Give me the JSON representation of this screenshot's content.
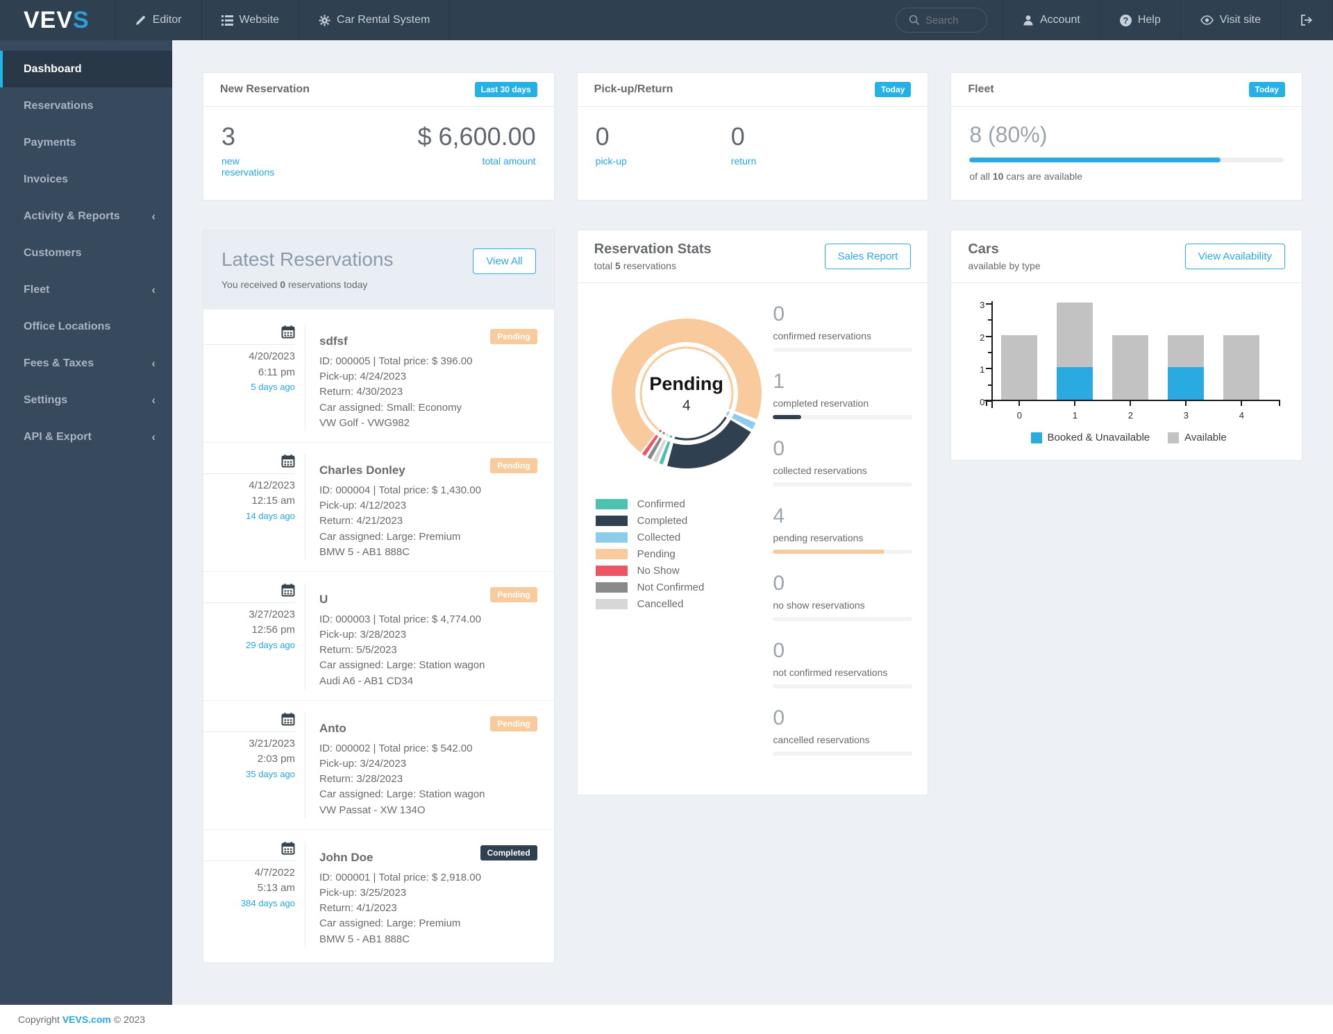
{
  "navbar": {
    "logo_white": "VEV",
    "logo_blue": "S",
    "items": [
      {
        "icon": "pencil-icon",
        "label": "Editor"
      },
      {
        "icon": "list-icon",
        "label": "Website"
      },
      {
        "icon": "gear-icon",
        "label": "Car Rental System"
      }
    ],
    "search_placeholder": "Search",
    "account_label": "Account",
    "help_label": "Help",
    "visit_site_label": "Visit site"
  },
  "sidebar": {
    "items": [
      {
        "label": "Dashboard",
        "active": "true",
        "chevron": ""
      },
      {
        "label": "Reservations",
        "active": "false",
        "chevron": ""
      },
      {
        "label": "Payments",
        "active": "false",
        "chevron": ""
      },
      {
        "label": "Invoices",
        "active": "false",
        "chevron": ""
      },
      {
        "label": "Activity & Reports",
        "active": "false",
        "chevron": "‹"
      },
      {
        "label": "Customers",
        "active": "false",
        "chevron": ""
      },
      {
        "label": "Fleet",
        "active": "false",
        "chevron": "‹"
      },
      {
        "label": "Office Locations",
        "active": "false",
        "chevron": ""
      },
      {
        "label": "Fees & Taxes",
        "active": "false",
        "chevron": "‹"
      },
      {
        "label": "Settings",
        "active": "false",
        "chevron": "‹"
      },
      {
        "label": "API & Export",
        "active": "false",
        "chevron": "‹"
      }
    ]
  },
  "new_reservation": {
    "title": "New Reservation",
    "badge": "Last 30 days",
    "count": "3",
    "count_label": "new reservations",
    "amount": "$ 6,600.00",
    "amount_label": "total amount"
  },
  "pickup_return": {
    "title": "Pick-up/Return",
    "badge": "Today",
    "pickup_count": "0",
    "pickup_label": "pick-up",
    "return_count": "0",
    "return_label": "return"
  },
  "fleet": {
    "title": "Fleet",
    "badge": "Today",
    "value": "8 (80%)",
    "progress_pct": 80,
    "note_prefix": "of all",
    "note_bold": "10",
    "note_suffix": "cars are available"
  },
  "latest_reservations": {
    "title": "Latest Reservations",
    "sub_prefix": "You received",
    "sub_bold": "0",
    "sub_suffix": "reservations today",
    "view_all_label": "View All",
    "items": [
      {
        "date": "4/20/2023",
        "time": "6:11 pm",
        "ago": "5 days ago",
        "name": "sdfsf",
        "status": "Pending",
        "id_line": "ID: 000005 | Total price: $ 396.00",
        "pickup": "Pick-up: 4/24/2023",
        "return": "Return: 4/30/2023",
        "car": "Car assigned: Small: Economy",
        "vehicle": "VW Golf - VWG982"
      },
      {
        "date": "4/12/2023",
        "time": "12:15 am",
        "ago": "14 days ago",
        "name": "Charles Donley",
        "status": "Pending",
        "id_line": "ID: 000004 | Total price: $ 1,430.00",
        "pickup": "Pick-up: 4/12/2023",
        "return": "Return: 4/21/2023",
        "car": "Car assigned: Large: Premium",
        "vehicle": "BMW 5 - AB1 888C"
      },
      {
        "date": "3/27/2023",
        "time": "12:56 pm",
        "ago": "29 days ago",
        "name": "U",
        "status": "Pending",
        "id_line": "ID: 000003 | Total price: $ 4,774.00",
        "pickup": "Pick-up: 3/28/2023",
        "return": "Return: 5/5/2023",
        "car": "Car assigned: Large: Station wagon",
        "vehicle": "Audi A6 - AB1 CD34"
      },
      {
        "date": "3/21/2023",
        "time": "2:03 pm",
        "ago": "35 days ago",
        "name": "Anto",
        "status": "Pending",
        "id_line": "ID: 000002 | Total price: $ 542.00",
        "pickup": "Pick-up: 3/24/2023",
        "return": "Return: 3/28/2023",
        "car": "Car assigned: Large: Station wagon",
        "vehicle": "VW Passat - XW 134O"
      },
      {
        "date": "4/7/2022",
        "time": "5:13 am",
        "ago": "384 days ago",
        "name": "John Doe",
        "status": "Completed",
        "id_line": "ID: 000001 | Total price: $ 2,918.00",
        "pickup": "Pick-up: 3/25/2023",
        "return": "Return: 4/1/2023",
        "car": "Car assigned: Large: Premium",
        "vehicle": "BMW 5 - AB1 888C"
      }
    ]
  },
  "reservation_stats": {
    "title": "Reservation Stats",
    "total_prefix": "total",
    "total_bold": "5",
    "total_suffix": "reservations",
    "sales_report_label": "Sales Report",
    "center_label": "Pending",
    "center_value": "4",
    "legend": [
      {
        "label": "Confirmed",
        "color": "#4ec2b1"
      },
      {
        "label": "Completed",
        "color": "#2f4050"
      },
      {
        "label": "Collected",
        "color": "#8dcdec"
      },
      {
        "label": "Pending",
        "color": "#f8ca9c"
      },
      {
        "label": "No Show",
        "color": "#ed5565"
      },
      {
        "label": "Not Confirmed",
        "color": "#8a8a8a"
      },
      {
        "label": "Cancelled",
        "color": "#d7d7d7"
      }
    ],
    "stats": [
      {
        "value": "0",
        "label": "confirmed reservations",
        "pct": 0,
        "color": "#4ec2b1"
      },
      {
        "value": "1",
        "label": "completed reservation",
        "pct": 20,
        "color": "#2f4050"
      },
      {
        "value": "0",
        "label": "collected reservations",
        "pct": 0,
        "color": "#8dcdec"
      },
      {
        "value": "4",
        "label": "pending reservations",
        "pct": 80,
        "color": "#f8ca9c"
      },
      {
        "value": "0",
        "label": "no show reservations",
        "pct": 0,
        "color": "#ed5565"
      },
      {
        "value": "0",
        "label": "not confirmed reservations",
        "pct": 0,
        "color": "#8a8a8a"
      },
      {
        "value": "0",
        "label": "cancelled reservations",
        "pct": 0,
        "color": "#d7d7d7"
      }
    ]
  },
  "cars": {
    "title": "Cars",
    "subtitle": "available by type",
    "button_label": "View Availability"
  },
  "chart_data": [
    {
      "type": "pie",
      "style": "donut",
      "title": "Reservation Stats",
      "total_reservations": 5,
      "center": {
        "label": "Pending",
        "value": 4
      },
      "segments": [
        {
          "label": "Confirmed",
          "value": 0,
          "color": "#4ec2b1"
        },
        {
          "label": "Completed",
          "value": 1,
          "color": "#2f4050"
        },
        {
          "label": "Collected",
          "value": 0,
          "color": "#8dcdec"
        },
        {
          "label": "Pending",
          "value": 4,
          "color": "#f8ca9c"
        },
        {
          "label": "No Show",
          "value": 0,
          "color": "#ed5565"
        },
        {
          "label": "Not Confirmed",
          "value": 0,
          "color": "#8a8a8a"
        },
        {
          "label": "Cancelled",
          "value": 0,
          "color": "#d7d7d7"
        }
      ],
      "display_arcs": [
        {
          "label": "Pending",
          "color": "#f8ca9c",
          "start": 218,
          "sweep": 252
        },
        {
          "label": "Collected",
          "color": "#8dcdec",
          "start": 113,
          "sweep": 5.5
        },
        {
          "label": "Completed",
          "color": "#2f4050",
          "start": 121,
          "sweep": 74
        },
        {
          "label": "Confirmed",
          "color": "#4ec2b1",
          "start": 198.5,
          "sweep": 3
        },
        {
          "label": "Cancelled",
          "color": "#d7d7d7",
          "start": 203.5,
          "sweep": 3
        },
        {
          "label": "Not Confirmed",
          "color": "#8a8a8a",
          "start": 208.5,
          "sweep": 3
        },
        {
          "label": "No Show",
          "color": "#ed5565",
          "start": 213.5,
          "sweep": 3
        }
      ],
      "legend_position": "bottom-left"
    },
    {
      "type": "bar",
      "stacked": true,
      "title": "Cars available by type",
      "categories": [
        "0",
        "1",
        "2",
        "3",
        "4"
      ],
      "series": [
        {
          "name": "Booked & Unavailable",
          "color": "#29abe2",
          "values": [
            0,
            1,
            0,
            1,
            0
          ]
        },
        {
          "name": "Available",
          "color": "#c2c2c2",
          "values": [
            2,
            2,
            2,
            1,
            2
          ]
        }
      ],
      "ylim": [
        0,
        3
      ],
      "yticks": [
        0,
        1,
        2,
        3
      ],
      "minor_yticks": [
        0.5,
        1.5,
        2.5
      ],
      "grid": false,
      "legend_position": "bottom"
    }
  ],
  "footer": {
    "prefix": "Copyright",
    "link": "VEVS.com",
    "suffix": "© 2023"
  }
}
